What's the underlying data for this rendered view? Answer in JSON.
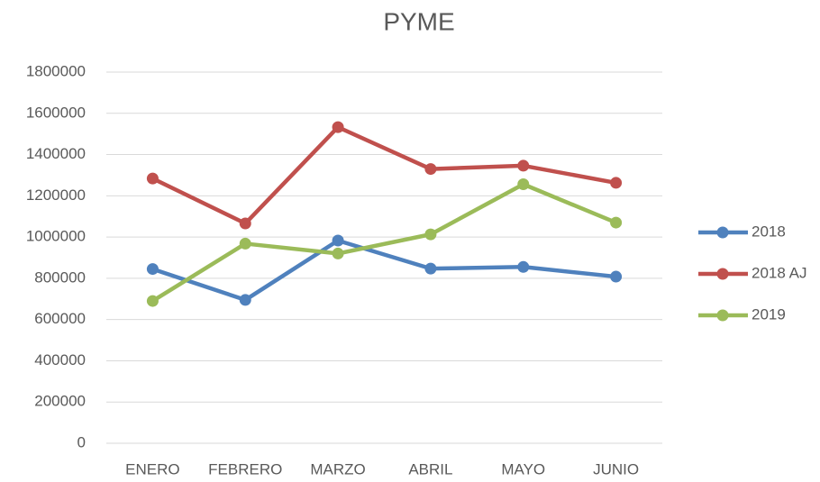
{
  "chart_data": {
    "type": "line",
    "title": "PYME",
    "categories": [
      "ENERO",
      "FEBRERO",
      "MARZO",
      "ABRIL",
      "MAYO",
      "JUNIO"
    ],
    "series": [
      {
        "name": "2018",
        "color": "#4f81bd",
        "values": [
          845000,
          695000,
          983000,
          847000,
          855000,
          808000
        ]
      },
      {
        "name": "2018 AJ",
        "color": "#c0504d",
        "values": [
          1284000,
          1066000,
          1533000,
          1330000,
          1346000,
          1263000
        ]
      },
      {
        "name": "2019",
        "color": "#9bbb59",
        "values": [
          690000,
          968000,
          920000,
          1013000,
          1256000,
          1070000
        ]
      }
    ],
    "ylim": [
      0,
      1800000
    ],
    "yticks": [
      0,
      200000,
      400000,
      600000,
      800000,
      1000000,
      1200000,
      1400000,
      1600000,
      1800000
    ],
    "grid": true,
    "legend": "right"
  }
}
